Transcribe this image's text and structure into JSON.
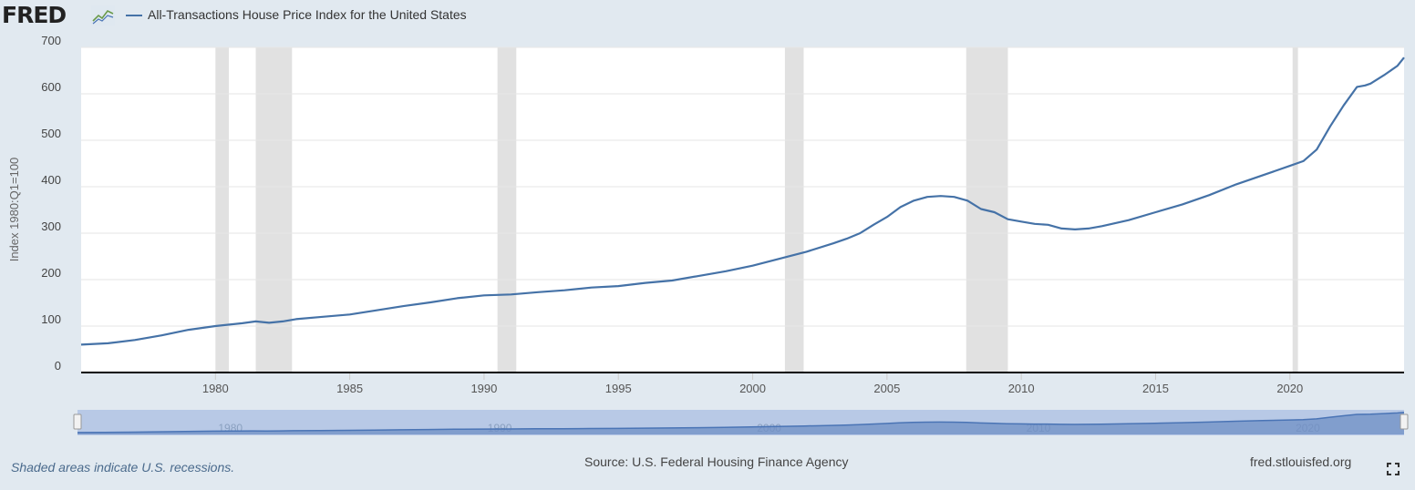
{
  "header": {
    "logo_text": "FRED",
    "logo_icon": "line-chart-icon",
    "legend_label": "All-Transactions House Price Index for the United States"
  },
  "footer": {
    "recession_note": "Shaded areas indicate U.S. recessions.",
    "source": "Source: U.S. Federal Housing Finance Agency",
    "url": "fred.stlouisfed.org",
    "fullscreen_icon": "fullscreen-icon"
  },
  "colors": {
    "series": "#4572a7",
    "recession": "#e1e1e1",
    "navigator_fill": "#b8c9e6",
    "navigator_line": "#4a74b5",
    "background": "#e1e9f0"
  },
  "chart_data": {
    "type": "line",
    "title": "",
    "xlabel": "",
    "ylabel": "Index 1980:Q1=100",
    "xlim": [
      1975.0,
      2024.25
    ],
    "ylim": [
      0,
      700
    ],
    "y_ticks": [
      0,
      100,
      200,
      300,
      400,
      500,
      600,
      700
    ],
    "x_ticks": [
      1980,
      1985,
      1990,
      1995,
      2000,
      2005,
      2010,
      2015,
      2020
    ],
    "grid": true,
    "legend_position": "top-left",
    "navigator_labels": [
      "1980",
      "1990",
      "2000",
      "2010",
      "2020"
    ],
    "recessions": [
      [
        1980.0,
        1980.5
      ],
      [
        1981.5,
        1982.85
      ],
      [
        1990.5,
        1991.2
      ],
      [
        2001.2,
        2001.9
      ],
      [
        2007.95,
        2009.5
      ],
      [
        2020.1,
        2020.3
      ]
    ],
    "series": [
      {
        "name": "All-Transactions House Price Index for the United States",
        "x": [
          1975.0,
          1976.0,
          1977.0,
          1978.0,
          1979.0,
          1980.0,
          1981.0,
          1981.5,
          1982.0,
          1982.5,
          1983.0,
          1984.0,
          1985.0,
          1986.0,
          1987.0,
          1988.0,
          1989.0,
          1990.0,
          1991.0,
          1992.0,
          1993.0,
          1994.0,
          1995.0,
          1996.0,
          1997.0,
          1998.0,
          1999.0,
          2000.0,
          2001.0,
          2002.0,
          2003.0,
          2003.5,
          2004.0,
          2004.5,
          2005.0,
          2005.5,
          2006.0,
          2006.5,
          2007.0,
          2007.5,
          2008.0,
          2008.5,
          2009.0,
          2009.5,
          2010.0,
          2010.5,
          2011.0,
          2011.5,
          2012.0,
          2012.5,
          2013.0,
          2014.0,
          2015.0,
          2016.0,
          2017.0,
          2018.0,
          2019.0,
          2020.0,
          2020.5,
          2021.0,
          2021.5,
          2022.0,
          2022.5,
          2022.8,
          2023.0,
          2023.5,
          2024.0,
          2024.25
        ],
        "values": [
          60,
          63,
          70,
          80,
          92,
          100,
          106,
          110,
          107,
          110,
          115,
          120,
          125,
          134,
          143,
          151,
          160,
          166,
          168,
          173,
          177,
          183,
          186,
          193,
          198,
          208,
          218,
          230,
          245,
          260,
          278,
          288,
          300,
          318,
          335,
          356,
          370,
          378,
          380,
          378,
          370,
          352,
          345,
          330,
          325,
          320,
          318,
          310,
          308,
          310,
          315,
          328,
          345,
          362,
          382,
          405,
          425,
          445,
          455,
          480,
          530,
          575,
          615,
          618,
          622,
          640,
          660,
          678
        ]
      }
    ]
  }
}
